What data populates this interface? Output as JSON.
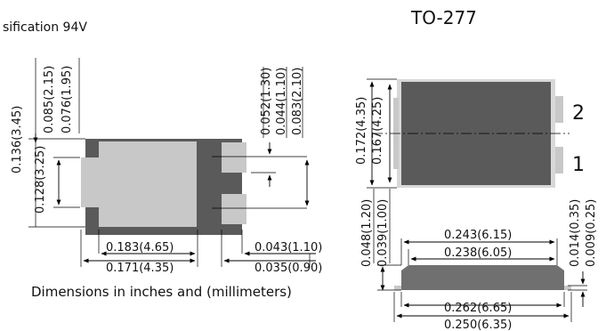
{
  "header": {
    "left_caption": "sification 94V",
    "package_title": "TO-277"
  },
  "left_view": {
    "dims": {
      "h_0136": "0.136(3.45)",
      "h_0128": "0.128(3.25)",
      "h_0085": "0.085(2.15)",
      "h_0076": "0.076(1.95)",
      "h_0052": "0.052(1.30)",
      "h_0044": "0.044(1.10)",
      "h_0083": "0.083(2.10)",
      "w_0183": "0.183(4.65)",
      "w_0171": "0.171(4.35)",
      "w_0043": "0.043(1.10)",
      "w_0035": "0.035(0.90)"
    },
    "caption": "Dimensions in inches and (millimeters)"
  },
  "right_top_view": {
    "dims": {
      "h_0172": "0.172(4.35)",
      "h_0167": "0.167(4.25)"
    },
    "pins": {
      "pin2": "2",
      "pin1": "1"
    }
  },
  "right_side_view": {
    "dims": {
      "h_0048": "0.048(1.20)",
      "h_0039": "0.039(1.00)",
      "w_0243": "0.243(6.15)",
      "w_0238": "0.238(6.05)",
      "h_0014": "0.014(0.35)",
      "h_0009": "0.009(0.25)",
      "w_0262": "0.262(6.65)",
      "w_0250": "0.250(6.35)"
    }
  },
  "colors": {
    "body_dark": "#5a5a5a",
    "pad_light": "#c8c8c8",
    "side_body": "#707070"
  }
}
